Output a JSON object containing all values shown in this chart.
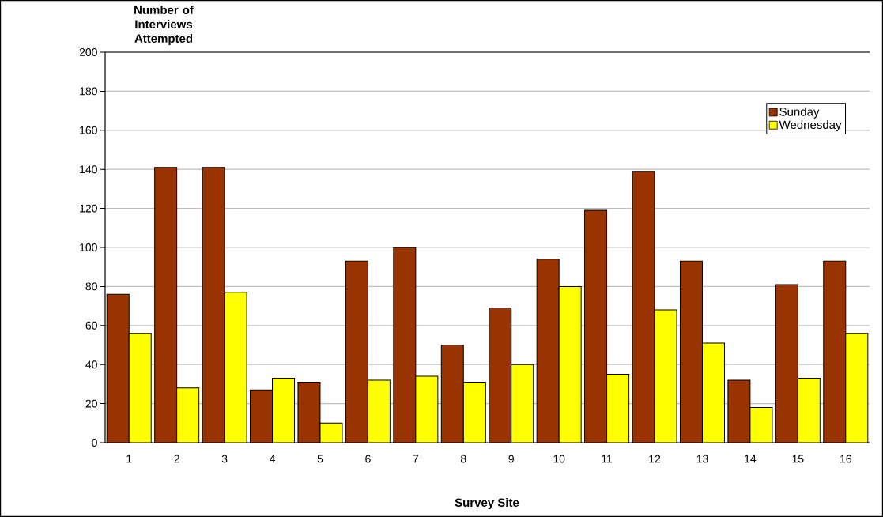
{
  "chart_data": {
    "type": "bar",
    "xlabel": "Survey Site",
    "ylabel": "Number of Interviews Attempted",
    "categories": [
      "1",
      "2",
      "3",
      "4",
      "5",
      "6",
      "7",
      "8",
      "9",
      "10",
      "11",
      "12",
      "13",
      "14",
      "15",
      "16"
    ],
    "series": [
      {
        "name": "Sunday",
        "color": "#993300",
        "values": [
          76,
          141,
          141,
          27,
          31,
          93,
          100,
          50,
          69,
          94,
          119,
          139,
          93,
          32,
          81,
          93
        ]
      },
      {
        "name": "Wednesday",
        "color": "#ffff00",
        "values": [
          56,
          28,
          77,
          33,
          10,
          32,
          34,
          31,
          40,
          80,
          35,
          68,
          51,
          18,
          33,
          56
        ]
      }
    ],
    "ylim": [
      0,
      200
    ],
    "yticks": [
      0,
      20,
      40,
      60,
      80,
      100,
      120,
      140,
      160,
      180,
      200
    ],
    "grid": "y",
    "legend": "top right"
  }
}
